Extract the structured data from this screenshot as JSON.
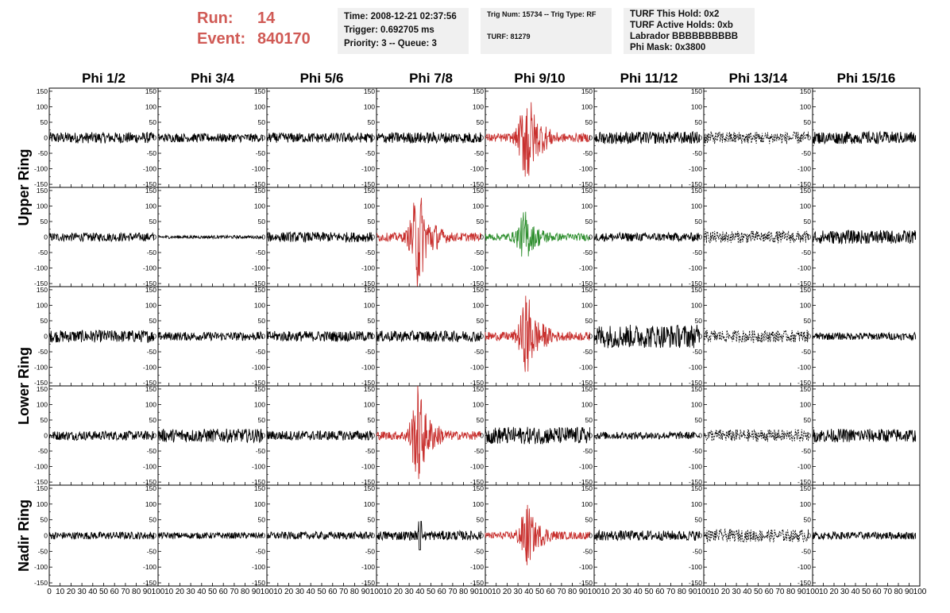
{
  "header": {
    "run_label": "Run:",
    "run_value": "14",
    "event_label": "Event:",
    "event_value": "840170",
    "time": "Time: 2008-12-21 02:37:56",
    "trigger": "Trigger: 0.692705 ms",
    "priority": "Priority: 3 -- Queue: 3",
    "trig_num": "Trig Num: 15734 -- Trig Type: RF",
    "turf_num": "TURF: 81279",
    "turf_hold": "TURF This Hold: 0x2",
    "turf_active": "TURF Active Holds: 0xb",
    "labrador": "Labrador BBBBBBBBBB",
    "phi_mask": "Phi Mask: 0x3800"
  },
  "colors": {
    "normal": "#000000",
    "triggered": "#c8302e",
    "green": "#2f8f2f"
  },
  "chart_data": {
    "type": "line",
    "columns": [
      "Phi 1/2",
      "Phi 3/4",
      "Phi 5/6",
      "Phi 7/8",
      "Phi 9/10",
      "Phi 11/12",
      "Phi 13/14",
      "Phi 15/16"
    ],
    "ring_labels": [
      {
        "label": "Upper Ring",
        "rows": [
          0,
          1
        ]
      },
      {
        "label": "Lower Ring",
        "rows": [
          2,
          3
        ]
      },
      {
        "label": "Nadir Ring",
        "rows": [
          4
        ]
      }
    ],
    "ylim": [
      -160,
      160
    ],
    "yticks_inner": [
      "150",
      "100",
      "50",
      "0",
      "-50",
      "-100",
      "-150"
    ],
    "yticks_last_row": [
      "150",
      "100",
      "50",
      "0",
      "-50",
      "-100",
      "-150"
    ],
    "yticks_values": [
      150,
      100,
      50,
      0,
      -50,
      -100,
      -150
    ],
    "xlim": [
      0,
      100
    ],
    "xticks": [
      0,
      10,
      20,
      30,
      40,
      50,
      60,
      70,
      80,
      90,
      100
    ],
    "xtick_labels": [
      "0",
      "10",
      "20",
      "30",
      "40",
      "50",
      "60",
      "70",
      "80",
      "90",
      "100"
    ],
    "panels": [
      [
        {
          "color": "black",
          "amp": 18,
          "style": "noise"
        },
        {
          "color": "black",
          "amp": 14,
          "style": "noise"
        },
        {
          "color": "black",
          "amp": 20,
          "style": "noise"
        },
        {
          "color": "black",
          "amp": 15,
          "style": "noise"
        },
        {
          "color": "black",
          "amp": 12,
          "style": "noise"
        }
      ],
      [
        {
          "color": "black",
          "amp": 14,
          "style": "noise"
        },
        {
          "color": "black",
          "amp": 5,
          "style": "noise"
        },
        {
          "color": "black",
          "amp": 14,
          "style": "noise"
        },
        {
          "color": "black",
          "amp": 22,
          "style": "noise"
        },
        {
          "color": "black",
          "amp": 10,
          "style": "noise"
        }
      ],
      [
        {
          "color": "black",
          "amp": 16,
          "style": "noise"
        },
        {
          "color": "black",
          "amp": 16,
          "style": "noise"
        },
        {
          "color": "black",
          "amp": 17,
          "style": "noise"
        },
        {
          "color": "black",
          "amp": 16,
          "style": "noise"
        },
        {
          "color": "black",
          "amp": 12,
          "style": "noise"
        }
      ],
      [
        {
          "color": "black",
          "amp": 18,
          "style": "noise"
        },
        {
          "color": "triggered",
          "amp": 14,
          "style": "pulse",
          "peak": 150,
          "center": 37
        },
        {
          "color": "black",
          "amp": 18,
          "style": "noise"
        },
        {
          "color": "triggered",
          "amp": 14,
          "style": "pulse",
          "peak": 140,
          "center": 37
        },
        {
          "color": "black",
          "amp": 15,
          "style": "noise",
          "spike": 40
        }
      ],
      [
        {
          "color": "triggered",
          "amp": 14,
          "style": "pulse",
          "peak": 150,
          "center": 37
        },
        {
          "color": "green",
          "amp": 12,
          "style": "pulse",
          "peak": 70,
          "center": 35
        },
        {
          "color": "triggered",
          "amp": 14,
          "style": "pulse",
          "peak": 120,
          "center": 37
        },
        {
          "color": "black",
          "amp": 28,
          "style": "noise"
        },
        {
          "color": "triggered",
          "amp": 12,
          "style": "pulse",
          "peak": 85,
          "center": 37
        }
      ],
      [
        {
          "color": "black",
          "amp": 20,
          "style": "noise"
        },
        {
          "color": "black",
          "amp": 14,
          "style": "noise"
        },
        {
          "color": "black",
          "amp": 38,
          "style": "noise"
        },
        {
          "color": "black",
          "amp": 12,
          "style": "noise"
        },
        {
          "color": "black",
          "amp": 16,
          "style": "noise"
        }
      ],
      [
        {
          "color": "black",
          "amp": 20,
          "style": "dashed"
        },
        {
          "color": "black",
          "amp": 20,
          "style": "dashed"
        },
        {
          "color": "black",
          "amp": 20,
          "style": "dashed"
        },
        {
          "color": "black",
          "amp": 20,
          "style": "dashed"
        },
        {
          "color": "black",
          "amp": 20,
          "style": "dashed"
        }
      ],
      [
        {
          "color": "black",
          "amp": 20,
          "style": "noise"
        },
        {
          "color": "black",
          "amp": 22,
          "style": "noise"
        },
        {
          "color": "black",
          "amp": 12,
          "style": "noise"
        },
        {
          "color": "black",
          "amp": 22,
          "style": "noise"
        },
        {
          "color": "black",
          "amp": 12,
          "style": "noise"
        }
      ]
    ]
  }
}
